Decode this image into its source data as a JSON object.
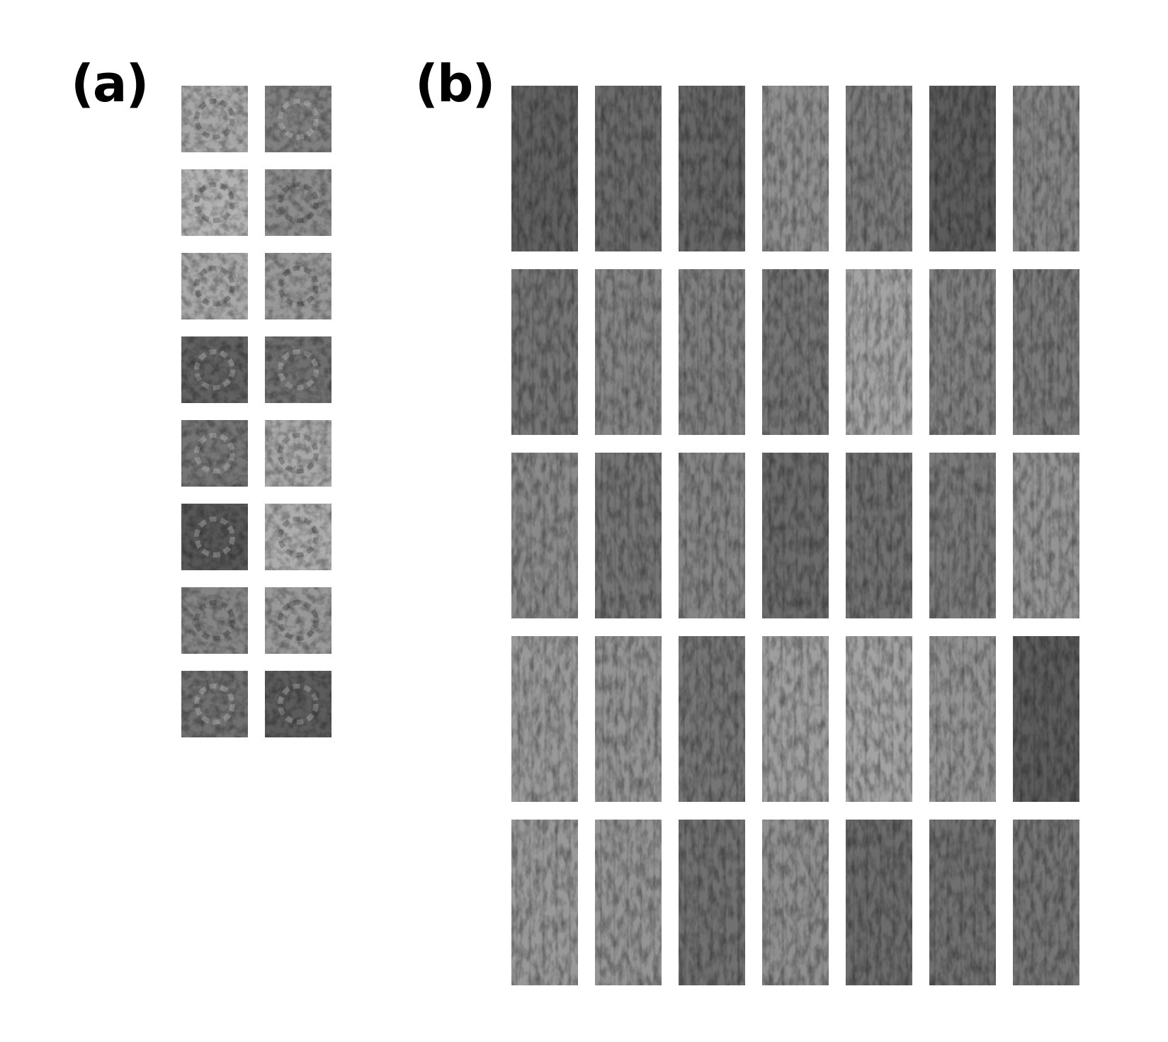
{
  "figure": {
    "panel_a_label": "(a)",
    "panel_b_label": "(b)"
  },
  "panel_a": {
    "rows": 8,
    "cols": 2,
    "brightness": [
      [
        0.66,
        0.5
      ],
      [
        0.7,
        0.55
      ],
      [
        0.66,
        0.6
      ],
      [
        0.38,
        0.44
      ],
      [
        0.46,
        0.66
      ],
      [
        0.34,
        0.68
      ],
      [
        0.52,
        0.6
      ],
      [
        0.44,
        0.36
      ]
    ]
  },
  "panel_b": {
    "rows": 5,
    "cols": 7,
    "brightness": [
      [
        0.38,
        0.42,
        0.4,
        0.56,
        0.48,
        0.36,
        0.52
      ],
      [
        0.46,
        0.52,
        0.5,
        0.46,
        0.64,
        0.5,
        0.48
      ],
      [
        0.54,
        0.46,
        0.52,
        0.42,
        0.44,
        0.48,
        0.58
      ],
      [
        0.6,
        0.58,
        0.46,
        0.62,
        0.64,
        0.58,
        0.36
      ],
      [
        0.6,
        0.58,
        0.44,
        0.56,
        0.42,
        0.44,
        0.46
      ]
    ]
  }
}
